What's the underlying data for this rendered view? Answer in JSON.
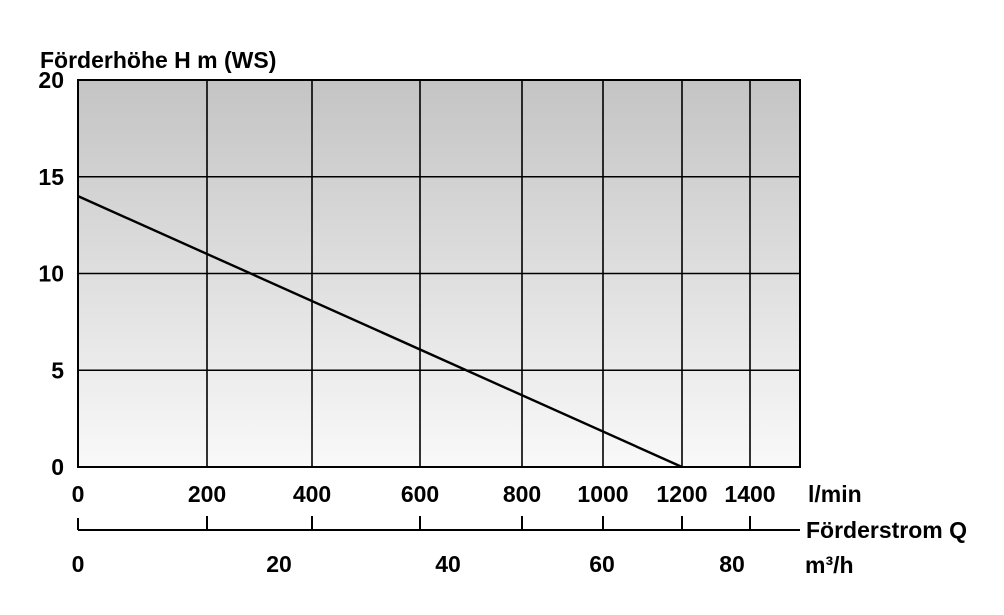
{
  "chart_data": {
    "type": "line",
    "ylabel": "Förderhöhe H m (WS)",
    "x_unit_lmin": "l/min",
    "x_unit_m3h": "m³/h",
    "x_axis_title": "Förderstrom Q",
    "ylim": [
      0,
      20
    ],
    "xlim_lmin": [
      0,
      1500
    ],
    "y_ticks": [
      {
        "value": 0,
        "label": "0"
      },
      {
        "value": 5,
        "label": "5"
      },
      {
        "value": 10,
        "label": "10"
      },
      {
        "value": 15,
        "label": "15"
      },
      {
        "value": 20,
        "label": "20"
      }
    ],
    "x_ticks_lmin": [
      {
        "value": 0,
        "label": "0"
      },
      {
        "value": 200,
        "label": "200"
      },
      {
        "value": 400,
        "label": "400"
      },
      {
        "value": 600,
        "label": "600"
      },
      {
        "value": 800,
        "label": "800"
      },
      {
        "value": 1000,
        "label": "1000"
      },
      {
        "value": 1200,
        "label": "1200"
      },
      {
        "value": 1400,
        "label": "1400"
      }
    ],
    "x_ticks_m3h": [
      {
        "value": 0,
        "label": "0"
      },
      {
        "value": 20,
        "label": "20"
      },
      {
        "value": 40,
        "label": "40"
      },
      {
        "value": 60,
        "label": "60"
      },
      {
        "value": 80,
        "label": "80"
      }
    ],
    "series": [
      {
        "x": [
          0,
          1200
        ],
        "y": [
          14,
          0
        ]
      }
    ],
    "grid": true,
    "colors": {
      "bg_top": "#c4c4c4",
      "bg_bottom": "#f9f9f9",
      "line": "#000000"
    }
  }
}
